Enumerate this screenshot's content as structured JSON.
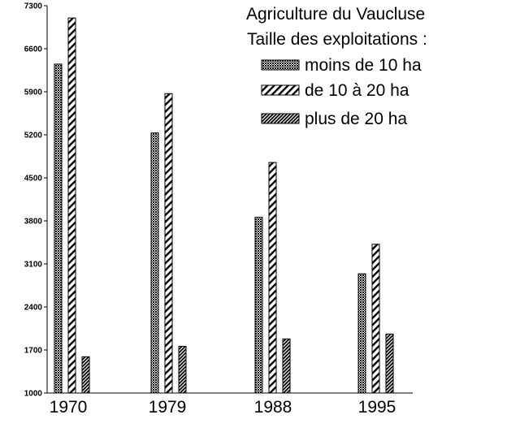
{
  "chart_data": {
    "type": "bar",
    "title": "Agriculture du Vaucluse",
    "legend_title": "Taille des exploitations :",
    "categories": [
      "1970",
      "1979",
      "1988",
      "1995"
    ],
    "series": [
      {
        "name": "moins de 10 ha",
        "pattern": "crosshatch",
        "values": [
          6350,
          5230,
          3860,
          2940
        ]
      },
      {
        "name": "de 10 à 20 ha",
        "pattern": "diagonal",
        "values": [
          7100,
          5870,
          4750,
          3420
        ]
      },
      {
        "name": "plus de 20 ha",
        "pattern": "dense-diagonal",
        "values": [
          1590,
          1760,
          1880,
          1960
        ]
      }
    ],
    "ylim": [
      1000,
      7300
    ],
    "yticks": [
      "1000",
      "1700",
      "2400",
      "3100",
      "3800",
      "4500",
      "5200",
      "5900",
      "6600",
      "7300"
    ],
    "xlabel": "",
    "ylabel": "",
    "grid": false,
    "legend_position": "top-right",
    "colors": {
      "background": "#ffffff",
      "ink": "#000000"
    }
  }
}
